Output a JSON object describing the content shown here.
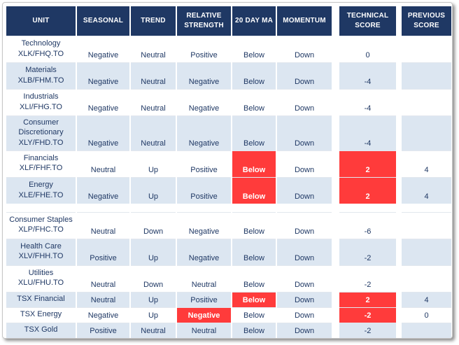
{
  "colors": {
    "header_bg": "#1F3864",
    "row_shade": "#DCE6F1",
    "highlight_red": "#FF3B3B",
    "text": "#1F3864"
  },
  "chart_data": {
    "type": "table",
    "title": "Sector technical score table",
    "columns": [
      {
        "key": "unit",
        "label": "UNIT"
      },
      {
        "key": "seasonal",
        "label": "SEASONAL"
      },
      {
        "key": "trend",
        "label": "TREND"
      },
      {
        "key": "relative_strength",
        "label": "RELATIVE STRENGTH"
      },
      {
        "key": "ma20",
        "label": "20 DAY MA"
      },
      {
        "key": "momentum",
        "label": "MOMENTUM"
      },
      {
        "key": "technical_score",
        "label": "TECHNICAL SCORE"
      },
      {
        "key": "previous_score",
        "label": "PREVIOUS SCORE"
      }
    ],
    "rows": [
      {
        "unit": "Technology",
        "ticker": "XLK/FHQ.TO",
        "seasonal": "Negative",
        "trend": "Neutral",
        "relative_strength": "Positive",
        "ma20": "Below",
        "momentum": "Down",
        "technical_score": "0",
        "previous_score": "",
        "shaded": false,
        "red": []
      },
      {
        "unit": "Materials",
        "ticker": "XLB/FHM.TO",
        "seasonal": "Negative",
        "trend": "Neutral",
        "relative_strength": "Negative",
        "ma20": "Below",
        "momentum": "Down",
        "technical_score": "-4",
        "previous_score": "",
        "shaded": true,
        "red": []
      },
      {
        "unit": "Industrials",
        "ticker": "XLI/FHG.TO",
        "seasonal": "Negative",
        "trend": "Neutral",
        "relative_strength": "Negative",
        "ma20": "Below",
        "momentum": "Down",
        "technical_score": "-4",
        "previous_score": "",
        "shaded": false,
        "red": []
      },
      {
        "unit": "Consumer Discretionary",
        "ticker": "XLY/FHD.TO",
        "seasonal": "Negative",
        "trend": "Neutral",
        "relative_strength": "Negative",
        "ma20": "Below",
        "momentum": "Down",
        "technical_score": "-4",
        "previous_score": "",
        "shaded": true,
        "red": []
      },
      {
        "unit": "Financials",
        "ticker": "XLF/FHF.TO",
        "seasonal": "Neutral",
        "trend": "Up",
        "relative_strength": "Positive",
        "ma20": "Below",
        "momentum": "Down",
        "technical_score": "2",
        "previous_score": "4",
        "shaded": false,
        "red": [
          "ma20",
          "technical_score"
        ]
      },
      {
        "unit": "Energy",
        "ticker": "XLE/FHE.TO",
        "seasonal": "Negative",
        "trend": "Up",
        "relative_strength": "Positive",
        "ma20": "Below",
        "momentum": "Down",
        "technical_score": "2",
        "previous_score": "4",
        "shaded": true,
        "red": [
          "ma20",
          "technical_score"
        ]
      },
      {
        "spacer": true
      },
      {
        "unit": "Consumer Staples",
        "ticker": "XLP/FHC.TO",
        "seasonal": "Neutral",
        "trend": "Down",
        "relative_strength": "Negative",
        "ma20": "Below",
        "momentum": "Down",
        "technical_score": "-6",
        "previous_score": "",
        "shaded": false,
        "red": []
      },
      {
        "unit": "Health Care",
        "ticker": "XLV/FHH.TO",
        "seasonal": "Positive",
        "trend": "Up",
        "relative_strength": "Negative",
        "ma20": "Below",
        "momentum": "Down",
        "technical_score": "-2",
        "previous_score": "",
        "shaded": true,
        "red": []
      },
      {
        "unit": "Utilities",
        "ticker": "XLU/FHU.TO",
        "seasonal": "Neutral",
        "trend": "Down",
        "relative_strength": "Neutral",
        "ma20": "Below",
        "momentum": "Down",
        "technical_score": "-2",
        "previous_score": "",
        "shaded": false,
        "red": []
      },
      {
        "unit": "TSX Financial",
        "ticker": "",
        "seasonal": "Neutral",
        "trend": "Up",
        "relative_strength": "Positive",
        "ma20": "Below",
        "momentum": "Down",
        "technical_score": "2",
        "previous_score": "4",
        "shaded": true,
        "red": [
          "ma20",
          "technical_score"
        ]
      },
      {
        "unit": "TSX Energy",
        "ticker": "",
        "seasonal": "Negative",
        "trend": "Up",
        "relative_strength": "Negative",
        "ma20": "Below",
        "momentum": "Down",
        "technical_score": "-2",
        "previous_score": "0",
        "shaded": false,
        "red": [
          "relative_strength",
          "technical_score"
        ]
      },
      {
        "unit": "TSX Gold",
        "ticker": "",
        "seasonal": "Positive",
        "trend": "Neutral",
        "relative_strength": "Neutral",
        "ma20": "Below",
        "momentum": "Down",
        "technical_score": "-2",
        "previous_score": "",
        "shaded": true,
        "red": []
      }
    ]
  }
}
